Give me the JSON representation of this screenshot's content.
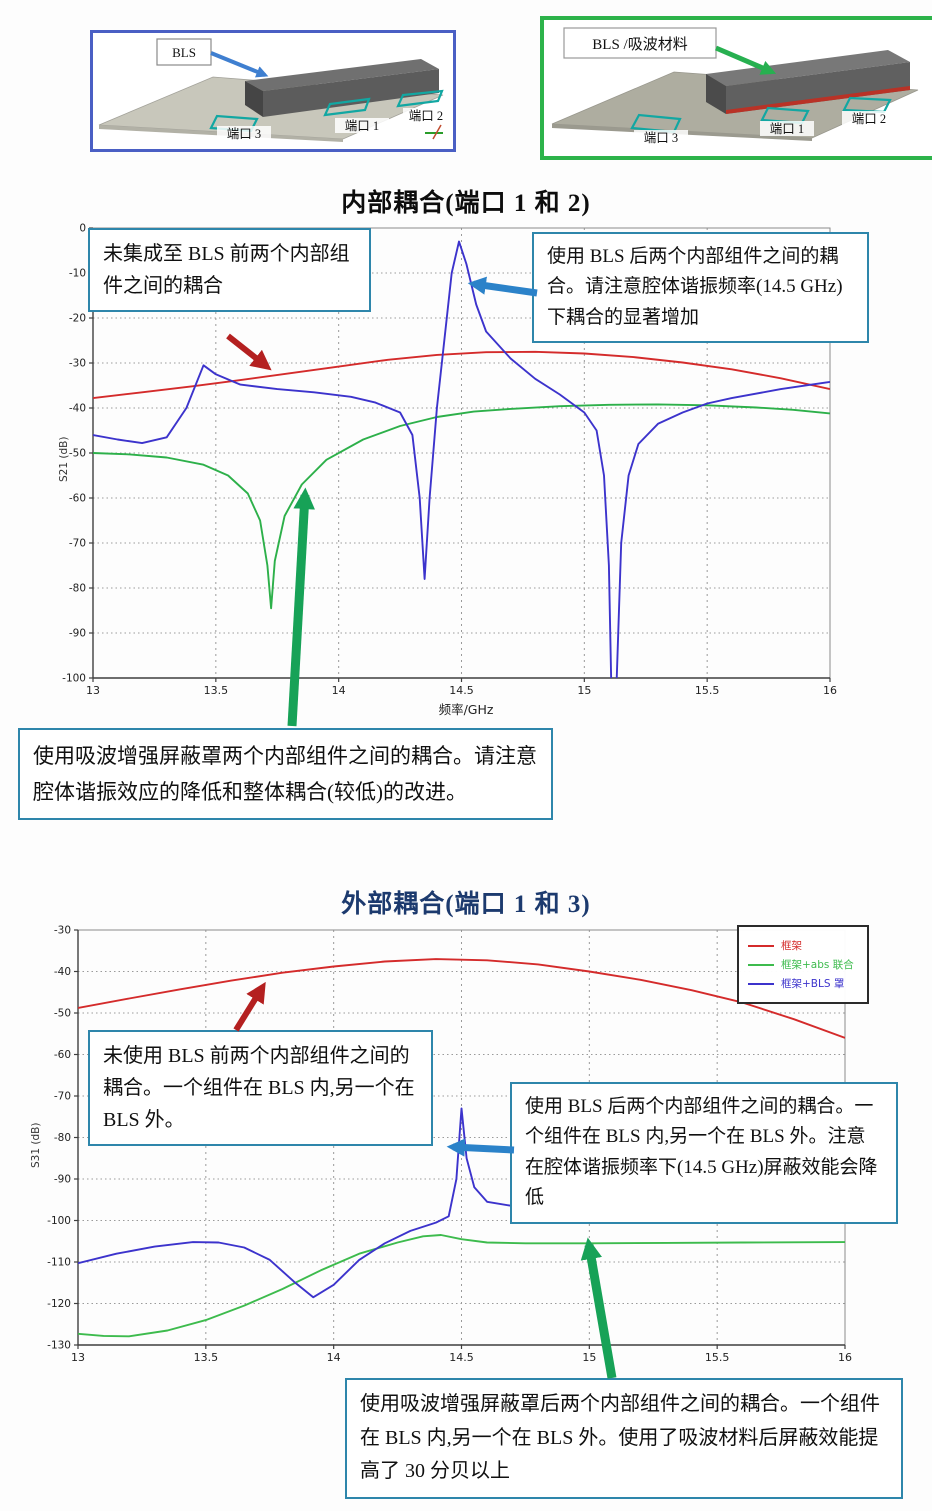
{
  "models": {
    "left": {
      "label": "BLS",
      "ports": [
        "端口 3",
        "端口 1",
        "端口 2"
      ],
      "border_color": "#4a5fc4"
    },
    "right": {
      "label": "BLS /吸波材料",
      "ports": [
        "端口 3",
        "端口 1",
        "端口 2"
      ],
      "border_color": "#2db34a"
    }
  },
  "annotations": {
    "chart1_left": "未集成至 BLS 前两个内部组件之间的耦合",
    "chart1_right": "使用 BLS 后两个内部组件之间的耦合。请注意腔体谐振频率(14.5 GHz)下耦合的显著增加",
    "chart1_bottom": "使用吸波增强屏蔽罩两个内部组件之间的耦合。请注意腔体谐振效应的降低和整体耦合(较低)的改进。",
    "chart2_left": "未使用 BLS 前两个内部组件之间的耦合。一个组件在 BLS 内,另一个在 BLS 外。",
    "chart2_mid": "使用 BLS 后两个内部组件之间的耦合。一个组件在 BLS 内,另一个在 BLS 外。注意在腔体谐振频率下(14.5 GHz)屏蔽效能会降低",
    "chart2_bottom": "使用吸波增强屏蔽罩后两个内部组件之间的耦合。一个组件在 BLS 内,另一个在 BLS 外。使用了吸波材料后屏蔽效能提高了 30 分贝以上"
  },
  "chart_data": [
    {
      "type": "line",
      "title": "内部耦合(端口 1 和 2)",
      "xlabel": "频率/GHz",
      "ylabel": "S21 (dB)",
      "xlim": [
        13,
        16
      ],
      "ylim": [
        0,
        -100
      ],
      "xticks": [
        13,
        13.5,
        14,
        14.5,
        15,
        15.5,
        16
      ],
      "yticks": [
        0,
        -10,
        -20,
        -30,
        -40,
        -50,
        -60,
        -70,
        -80,
        -90,
        -100
      ],
      "grid": true,
      "legend_position": null,
      "series": [
        {
          "name": "框架",
          "color": "#d42b2b",
          "points": [
            [
              13,
              -37.8
            ],
            [
              13.2,
              -36.5
            ],
            [
              13.4,
              -35.2
            ],
            [
              13.6,
              -33.8
            ],
            [
              13.8,
              -32.3
            ],
            [
              14,
              -30.8
            ],
            [
              14.2,
              -29.3
            ],
            [
              14.4,
              -28.2
            ],
            [
              14.6,
              -27.6
            ],
            [
              14.8,
              -27.5
            ],
            [
              15,
              -27.9
            ],
            [
              15.2,
              -28.7
            ],
            [
              15.4,
              -29.9
            ],
            [
              15.6,
              -31.4
            ],
            [
              15.8,
              -33.4
            ],
            [
              16,
              -35.8
            ]
          ]
        },
        {
          "name": "框架+abs 联合",
          "color": "#2db04a",
          "points": [
            [
              13,
              -50
            ],
            [
              13.15,
              -50.3
            ],
            [
              13.3,
              -51
            ],
            [
              13.45,
              -52.6
            ],
            [
              13.55,
              -55
            ],
            [
              13.63,
              -59
            ],
            [
              13.68,
              -65
            ],
            [
              13.71,
              -75
            ],
            [
              13.725,
              -84.5
            ],
            [
              13.74,
              -74
            ],
            [
              13.78,
              -64
            ],
            [
              13.85,
              -57
            ],
            [
              13.95,
              -51.5
            ],
            [
              14.1,
              -47
            ],
            [
              14.25,
              -44
            ],
            [
              14.4,
              -42
            ],
            [
              14.55,
              -40.8
            ],
            [
              14.7,
              -40.2
            ],
            [
              14.9,
              -39.6
            ],
            [
              15.1,
              -39.3
            ],
            [
              15.3,
              -39.2
            ],
            [
              15.5,
              -39.4
            ],
            [
              15.7,
              -39.9
            ],
            [
              15.85,
              -40.4
            ],
            [
              16,
              -41.2
            ]
          ]
        },
        {
          "name": "框架+BLS 罩",
          "color": "#3c33cc",
          "points": [
            [
              13,
              -46
            ],
            [
              13.1,
              -47
            ],
            [
              13.2,
              -47.8
            ],
            [
              13.3,
              -46.5
            ],
            [
              13.38,
              -40
            ],
            [
              13.45,
              -30.5
            ],
            [
              13.5,
              -32.5
            ],
            [
              13.6,
              -34.8
            ],
            [
              13.75,
              -35.8
            ],
            [
              13.9,
              -36.5
            ],
            [
              14.05,
              -37.5
            ],
            [
              14.15,
              -38.8
            ],
            [
              14.25,
              -41
            ],
            [
              14.3,
              -46
            ],
            [
              14.33,
              -60
            ],
            [
              14.35,
              -78
            ],
            [
              14.37,
              -60
            ],
            [
              14.4,
              -40
            ],
            [
              14.43,
              -25
            ],
            [
              14.46,
              -10
            ],
            [
              14.49,
              -3
            ],
            [
              14.52,
              -8
            ],
            [
              14.56,
              -17
            ],
            [
              14.6,
              -23
            ],
            [
              14.7,
              -29
            ],
            [
              14.8,
              -33.5
            ],
            [
              14.9,
              -37
            ],
            [
              15,
              -41
            ],
            [
              15.05,
              -45
            ],
            [
              15.08,
              -55
            ],
            [
              15.1,
              -75
            ],
            [
              15.11,
              -103
            ],
            [
              15.13,
              -103
            ],
            [
              15.15,
              -70
            ],
            [
              15.18,
              -55
            ],
            [
              15.22,
              -48
            ],
            [
              15.3,
              -43.5
            ],
            [
              15.4,
              -41
            ],
            [
              15.5,
              -39
            ],
            [
              15.6,
              -37.8
            ],
            [
              15.8,
              -35.8
            ],
            [
              16,
              -34.2
            ]
          ]
        }
      ]
    },
    {
      "type": "line",
      "title": "外部耦合(端口 1 和 3)",
      "xlabel": "",
      "ylabel": "S31 (dB)",
      "xlim": [
        13,
        16
      ],
      "ylim": [
        -30,
        -130
      ],
      "xticks": [
        13,
        13.5,
        14,
        14.5,
        15,
        15.5,
        16
      ],
      "yticks": [
        -30,
        -40,
        -50,
        -60,
        -70,
        -80,
        -90,
        -100,
        -110,
        -120,
        -130
      ],
      "grid": true,
      "legend_position": "top-right",
      "series": [
        {
          "name": "框架",
          "color": "#d42b2b",
          "points": [
            [
              13,
              -48.8
            ],
            [
              13.2,
              -46.5
            ],
            [
              13.4,
              -44.3
            ],
            [
              13.6,
              -42.2
            ],
            [
              13.8,
              -40.3
            ],
            [
              14,
              -38.8
            ],
            [
              14.2,
              -37.6
            ],
            [
              14.4,
              -37
            ],
            [
              14.6,
              -37.3
            ],
            [
              14.8,
              -38.3
            ],
            [
              15,
              -40
            ],
            [
              15.2,
              -42
            ],
            [
              15.4,
              -44.5
            ],
            [
              15.6,
              -47.5
            ],
            [
              15.8,
              -51.5
            ],
            [
              16,
              -56
            ]
          ]
        },
        {
          "name": "框架+abs 联合",
          "color": "#3dbb4d",
          "points": [
            [
              13,
              -127.3
            ],
            [
              13.1,
              -127.8
            ],
            [
              13.2,
              -127.9
            ],
            [
              13.35,
              -126.5
            ],
            [
              13.5,
              -124
            ],
            [
              13.65,
              -120.5
            ],
            [
              13.8,
              -116.5
            ],
            [
              13.95,
              -112
            ],
            [
              14.1,
              -108
            ],
            [
              14.25,
              -105.3
            ],
            [
              14.35,
              -103.8
            ],
            [
              14.42,
              -103.5
            ],
            [
              14.5,
              -104.5
            ],
            [
              14.6,
              -105.3
            ],
            [
              14.75,
              -105.5
            ],
            [
              15,
              -105.5
            ],
            [
              15.3,
              -105.4
            ],
            [
              15.6,
              -105.3
            ],
            [
              16,
              -105.2
            ]
          ]
        },
        {
          "name": "框架+BLS 罩",
          "color": "#3c33cc",
          "points": [
            [
              13,
              -110.3
            ],
            [
              13.15,
              -108
            ],
            [
              13.3,
              -106.3
            ],
            [
              13.45,
              -105.2
            ],
            [
              13.55,
              -105.3
            ],
            [
              13.65,
              -106.5
            ],
            [
              13.75,
              -109.5
            ],
            [
              13.85,
              -115
            ],
            [
              13.92,
              -118.5
            ],
            [
              14,
              -115.5
            ],
            [
              14.1,
              -109.5
            ],
            [
              14.2,
              -105.5
            ],
            [
              14.3,
              -102.5
            ],
            [
              14.4,
              -100.5
            ],
            [
              14.45,
              -99
            ],
            [
              14.48,
              -90
            ],
            [
              14.5,
              -73
            ],
            [
              14.52,
              -85
            ],
            [
              14.55,
              -92
            ],
            [
              14.6,
              -95.5
            ],
            [
              14.7,
              -96.5
            ],
            [
              14.9,
              -96.7
            ],
            [
              15.2,
              -96.5
            ],
            [
              15.5,
              -96.3
            ],
            [
              15.8,
              -96.2
            ],
            [
              16,
              -96
            ]
          ]
        }
      ]
    }
  ]
}
